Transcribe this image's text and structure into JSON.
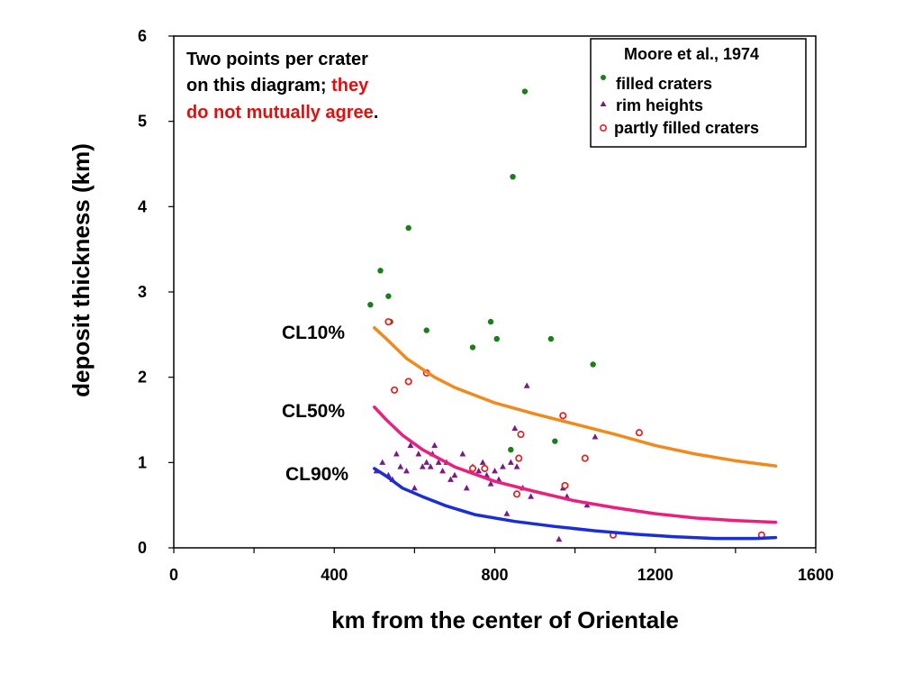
{
  "chart_data": {
    "type": "scatter",
    "title": "",
    "xlabel": "km from the center of Orientale",
    "ylabel": "deposit thickness (km)",
    "xlim": [
      0,
      1600
    ],
    "ylim": [
      0,
      6
    ],
    "x_ticks": [
      "0",
      "400",
      "800",
      "1200",
      "1600"
    ],
    "y_ticks": [
      "0",
      "1",
      "2",
      "3",
      "4",
      "5",
      "6"
    ],
    "grid": false,
    "legend": {
      "title": "Moore et al., 1974",
      "position": "top-right",
      "entries": [
        "filled craters",
        "rim heights",
        "partly filled craters"
      ]
    },
    "annotation": {
      "line1": "Two points per crater",
      "line2_black": "on this diagram; ",
      "line2_red": "they",
      "line3_red": "do not mutually agree",
      "line3_end": "."
    },
    "series": [
      {
        "name": "filled craters",
        "kind": "points",
        "color": "#1a7f1a",
        "x": [
          490,
          515,
          535,
          540,
          585,
          630,
          745,
          790,
          805,
          840,
          845,
          875,
          940,
          950,
          1045
        ],
        "y": [
          2.85,
          3.25,
          2.95,
          2.65,
          3.75,
          2.55,
          2.35,
          2.65,
          2.45,
          1.15,
          4.35,
          5.35,
          2.45,
          1.25,
          2.15
        ]
      },
      {
        "name": "rim heights",
        "kind": "points",
        "color": "#7a1a8a",
        "x": [
          505,
          520,
          535,
          545,
          555,
          565,
          580,
          590,
          600,
          610,
          620,
          630,
          640,
          645,
          650,
          660,
          670,
          680,
          690,
          700,
          720,
          730,
          745,
          760,
          770,
          780,
          790,
          800,
          810,
          820,
          830,
          840,
          850,
          855,
          860,
          870,
          880,
          890,
          960,
          970,
          980,
          1030,
          1050
        ],
        "y": [
          0.9,
          1.0,
          0.85,
          0.8,
          1.1,
          0.95,
          0.9,
          1.2,
          0.7,
          1.1,
          0.95,
          1.0,
          0.95,
          1.1,
          1.2,
          1.0,
          0.9,
          1.0,
          0.8,
          0.85,
          1.1,
          0.7,
          0.95,
          0.9,
          1.0,
          0.85,
          0.75,
          0.9,
          0.8,
          0.95,
          0.4,
          1.0,
          1.4,
          0.95,
          1.05,
          0.7,
          1.9,
          0.6,
          0.1,
          0.7,
          0.6,
          0.5,
          1.3
        ]
      },
      {
        "name": "partly filled craters",
        "kind": "points",
        "color": "#dd2222",
        "x": [
          535,
          550,
          585,
          630,
          745,
          775,
          855,
          860,
          865,
          970,
          975,
          1025,
          1095,
          1160,
          1465
        ],
        "y": [
          2.65,
          1.85,
          1.95,
          2.05,
          0.93,
          0.93,
          0.63,
          1.05,
          1.33,
          1.55,
          0.73,
          1.05,
          0.15,
          1.35,
          0.15
        ]
      },
      {
        "name": "CL10%",
        "kind": "line",
        "color": "#f08a1c",
        "x": [
          500,
          530,
          580,
          650,
          700,
          800,
          900,
          1000,
          1100,
          1200,
          1300,
          1400,
          1500
        ],
        "y": [
          2.58,
          2.45,
          2.22,
          2.0,
          1.88,
          1.7,
          1.57,
          1.45,
          1.33,
          1.2,
          1.1,
          1.02,
          0.96
        ]
      },
      {
        "name": "CL50%",
        "kind": "line",
        "color": "#e8207e",
        "x": [
          500,
          530,
          570,
          620,
          700,
          800,
          900,
          1000,
          1100,
          1200,
          1300,
          1400,
          1500
        ],
        "y": [
          1.65,
          1.5,
          1.32,
          1.15,
          0.95,
          0.78,
          0.66,
          0.55,
          0.47,
          0.4,
          0.35,
          0.32,
          0.3
        ]
      },
      {
        "name": "CL90%",
        "kind": "line",
        "color": "#1a2ed8",
        "x": [
          500,
          530,
          570,
          620,
          680,
          750,
          850,
          950,
          1050,
          1150,
          1250,
          1350,
          1450,
          1500
        ],
        "y": [
          0.93,
          0.84,
          0.7,
          0.6,
          0.49,
          0.39,
          0.31,
          0.25,
          0.2,
          0.16,
          0.13,
          0.11,
          0.11,
          0.12
        ]
      }
    ],
    "curve_labels": [
      "CL10%",
      "CL50%",
      "CL90%"
    ]
  }
}
